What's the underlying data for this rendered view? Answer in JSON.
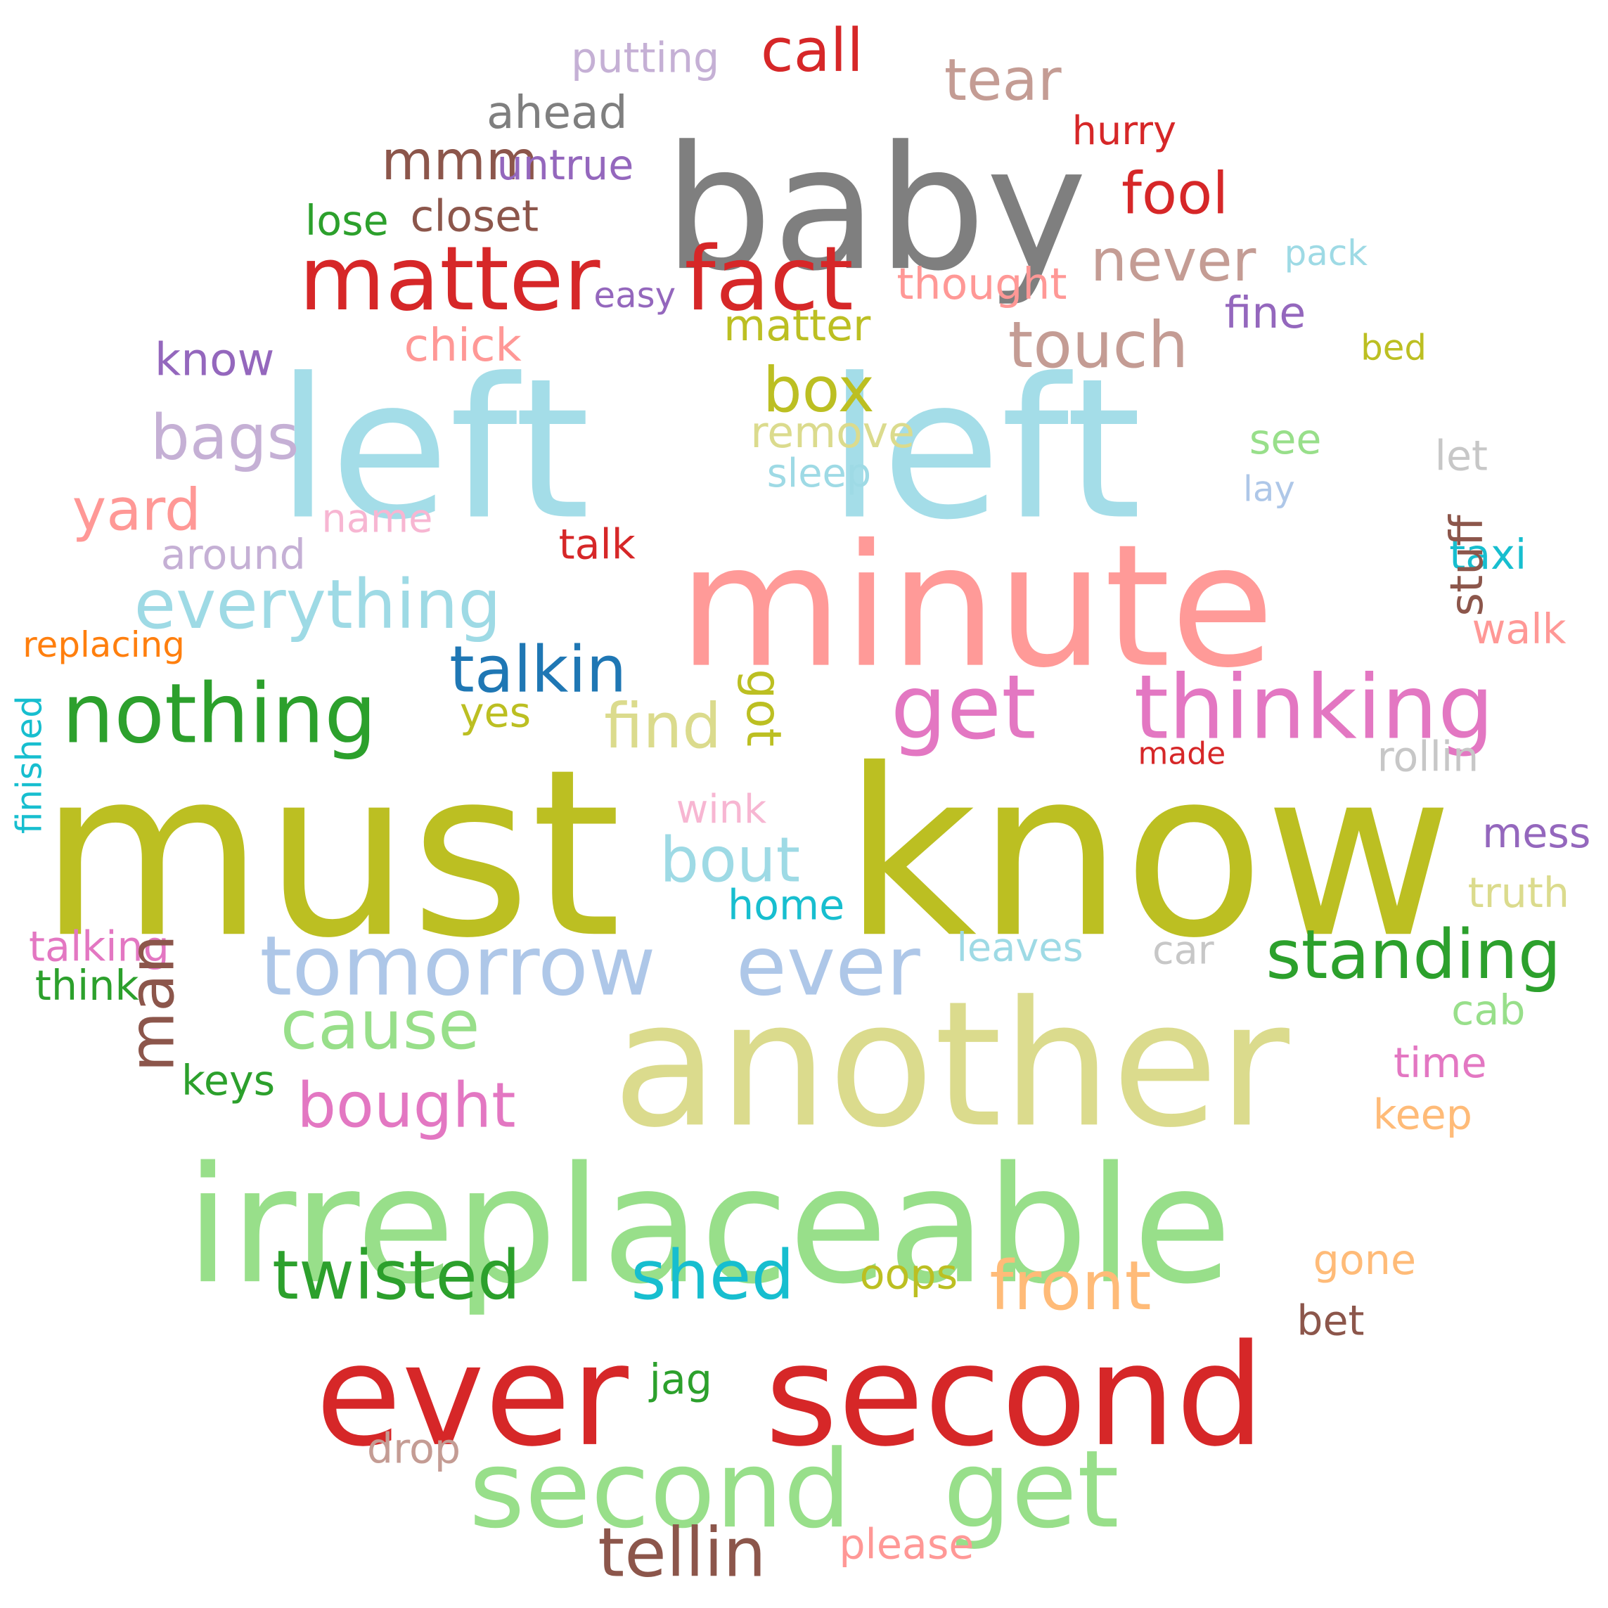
{
  "words": [
    {
      "text": "left",
      "color": "#a4dde8"
    },
    {
      "text": "left",
      "color": "#a4dde8"
    },
    {
      "text": "must",
      "color": "#bcbf22"
    },
    {
      "text": "know",
      "color": "#bcbf22"
    },
    {
      "text": "minute",
      "color": "#ff9a98"
    },
    {
      "text": "another",
      "color": "#dbdb8d"
    },
    {
      "text": "irreplaceable",
      "color": "#98df8a"
    },
    {
      "text": "ever",
      "color": "#d62728"
    },
    {
      "text": "second",
      "color": "#d62728"
    },
    {
      "text": "baby",
      "color": "#7f7f7f"
    },
    {
      "text": "second",
      "color": "#98df8a"
    },
    {
      "text": "get",
      "color": "#98df8a"
    },
    {
      "text": "matter",
      "color": "#d62728"
    },
    {
      "text": "fact",
      "color": "#d62728"
    },
    {
      "text": "get",
      "color": "#e377c2"
    },
    {
      "text": "thinking",
      "color": "#e377c2"
    },
    {
      "text": "tomorrow",
      "color": "#aec7e8"
    },
    {
      "text": "ever",
      "color": "#aec7e8"
    },
    {
      "text": "nothing",
      "color": "#2ca02c"
    },
    {
      "text": "everything",
      "color": "#9edae5"
    },
    {
      "text": "standing",
      "color": "#2ca02c"
    },
    {
      "text": "cause",
      "color": "#98df8a"
    },
    {
      "text": "twisted",
      "color": "#2ca02c"
    },
    {
      "text": "shed",
      "color": "#17becf"
    },
    {
      "text": "front",
      "color": "#ffbb78"
    },
    {
      "text": "tellin",
      "color": "#8c564b"
    },
    {
      "text": "bought",
      "color": "#e377c2"
    },
    {
      "text": "touch",
      "color": "#c49c94"
    },
    {
      "text": "talkin",
      "color": "#1f77b4"
    },
    {
      "text": "bout",
      "color": "#9edae5"
    },
    {
      "text": "find",
      "color": "#dbdb8d"
    },
    {
      "text": "box",
      "color": "#bcbf22"
    },
    {
      "text": "bags",
      "color": "#c5b0d5"
    },
    {
      "text": "yard",
      "color": "#ff9896"
    },
    {
      "text": "fool",
      "color": "#d62728"
    },
    {
      "text": "never",
      "color": "#c49c94"
    },
    {
      "text": "tear",
      "color": "#c49c94"
    },
    {
      "text": "call",
      "color": "#d62728"
    },
    {
      "text": "mmm",
      "color": "#8c564b"
    },
    {
      "text": "ahead",
      "color": "#7f7f7f"
    },
    {
      "text": "putting",
      "color": "#c5b0d5"
    },
    {
      "text": "untrue",
      "color": "#9467bd"
    },
    {
      "text": "closet",
      "color": "#8c564b"
    },
    {
      "text": "lose",
      "color": "#2ca02c"
    },
    {
      "text": "hurry",
      "color": "#d62728"
    },
    {
      "text": "easy",
      "color": "#9467bd"
    },
    {
      "text": "thought",
      "color": "#ff9896"
    },
    {
      "text": "pack",
      "color": "#9edae5"
    },
    {
      "text": "matter",
      "color": "#bcbf22"
    },
    {
      "text": "fine",
      "color": "#9467bd"
    },
    {
      "text": "chick",
      "color": "#ff9896"
    },
    {
      "text": "know",
      "color": "#9467bd"
    },
    {
      "text": "bed",
      "color": "#bcbf22"
    },
    {
      "text": "remove",
      "color": "#dbdb8d"
    },
    {
      "text": "see",
      "color": "#98df8a"
    },
    {
      "text": "let",
      "color": "#c7c7c7"
    },
    {
      "text": "sleep",
      "color": "#9edae5"
    },
    {
      "text": "lay",
      "color": "#aec7e8"
    },
    {
      "text": "name",
      "color": "#f7b6d2"
    },
    {
      "text": "talk",
      "color": "#d62728"
    },
    {
      "text": "around",
      "color": "#c5b0d5"
    },
    {
      "text": "taxi",
      "color": "#17becf"
    },
    {
      "text": "walk",
      "color": "#ff9896"
    },
    {
      "text": "replacing",
      "color": "#ff7f0e"
    },
    {
      "text": "yes",
      "color": "#bcbf22"
    },
    {
      "text": "made",
      "color": "#d62728"
    },
    {
      "text": "rollin",
      "color": "#c7c7c7"
    },
    {
      "text": "wink",
      "color": "#f7b6d2"
    },
    {
      "text": "mess",
      "color": "#9467bd"
    },
    {
      "text": "truth",
      "color": "#dbdb8d"
    },
    {
      "text": "home",
      "color": "#17becf"
    },
    {
      "text": "leaves",
      "color": "#9edae5"
    },
    {
      "text": "car",
      "color": "#c7c7c7"
    },
    {
      "text": "talking",
      "color": "#e377c2"
    },
    {
      "text": "think",
      "color": "#2ca02c"
    },
    {
      "text": "cab",
      "color": "#98df8a"
    },
    {
      "text": "time",
      "color": "#e377c2"
    },
    {
      "text": "keys",
      "color": "#2ca02c"
    },
    {
      "text": "keep",
      "color": "#ffbb78"
    },
    {
      "text": "gone",
      "color": "#ffbb78"
    },
    {
      "text": "oops",
      "color": "#bcbf22"
    },
    {
      "text": "bet",
      "color": "#8c564b"
    },
    {
      "text": "jag",
      "color": "#2ca02c"
    },
    {
      "text": "drop",
      "color": "#c49c94"
    },
    {
      "text": "please",
      "color": "#ff9896"
    }
  ],
  "vertical_words": [
    {
      "text": "stuff",
      "color": "#8c564b"
    },
    {
      "text": "got",
      "color": "#bcbf22"
    },
    {
      "text": "man",
      "color": "#8c564b"
    },
    {
      "text": "finished",
      "color": "#17becf"
    }
  ]
}
